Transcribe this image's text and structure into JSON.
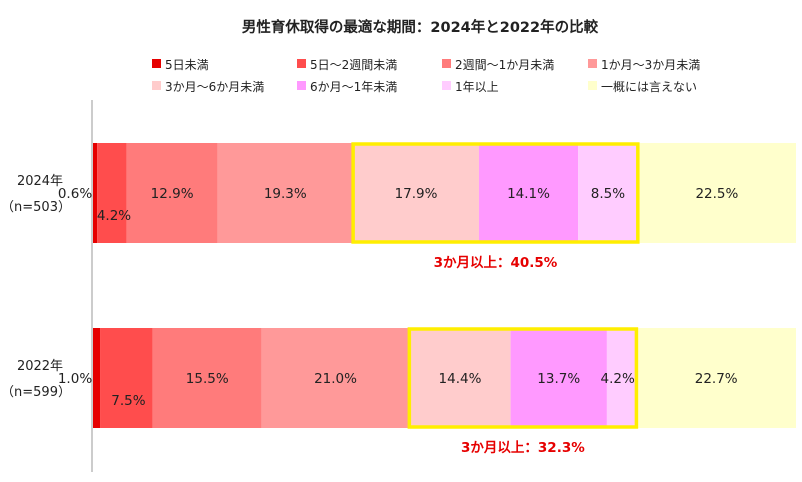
{
  "chart_data": {
    "type": "bar",
    "orientation": "horizontal",
    "stacked": "percent",
    "title": "男性育休取得の最適な期間：2024年と2022年の比較",
    "categories": [
      {
        "label": "2024年",
        "sub": "（n=503）"
      },
      {
        "label": "2022年",
        "sub": "（n=599）"
      }
    ],
    "series": [
      {
        "name": "5日未満",
        "color": "#e60000",
        "values": [
          0.6,
          1.0
        ],
        "labels": [
          "0.6%",
          "1.0%"
        ]
      },
      {
        "name": "5日～2週間未満",
        "color": "#ff4d4d",
        "values": [
          4.2,
          7.5
        ],
        "labels": [
          "4.2%",
          "7.5%"
        ]
      },
      {
        "name": "2週間～1か月未満",
        "color": "#ff7b7b",
        "values": [
          12.9,
          15.5
        ],
        "labels": [
          "12.9%",
          "15.5%"
        ]
      },
      {
        "name": "1か月～3か月未満",
        "color": "#ff9999",
        "values": [
          19.3,
          21.0
        ],
        "labels": [
          "19.3%",
          "21.0%"
        ]
      },
      {
        "name": "3か月～6か月未満",
        "color": "#ffcccc",
        "values": [
          17.9,
          14.4
        ],
        "labels": [
          "17.9%",
          "14.4%"
        ]
      },
      {
        "name": "6か月～1年未満",
        "color": "#ff99ff",
        "values": [
          14.1,
          13.7
        ],
        "labels": [
          "14.1%",
          "13.7%"
        ]
      },
      {
        "name": "1年以上",
        "color": "#ffccff",
        "values": [
          8.5,
          4.2
        ],
        "labels": [
          "8.5%",
          "4.2%"
        ]
      },
      {
        "name": "一概には言えない",
        "color": "#ffffcc",
        "values": [
          22.5,
          22.7
        ],
        "labels": [
          "22.5%",
          "22.7%"
        ]
      }
    ],
    "highlight": {
      "color": "#ffee00",
      "label_color": "#e60000",
      "from_series": 4,
      "to_series": 6,
      "labels": [
        "3か月以上：40.5%",
        "3か月以上：32.3%"
      ]
    },
    "xlim": [
      0,
      100
    ],
    "grid": false,
    "legend_position": "top"
  }
}
